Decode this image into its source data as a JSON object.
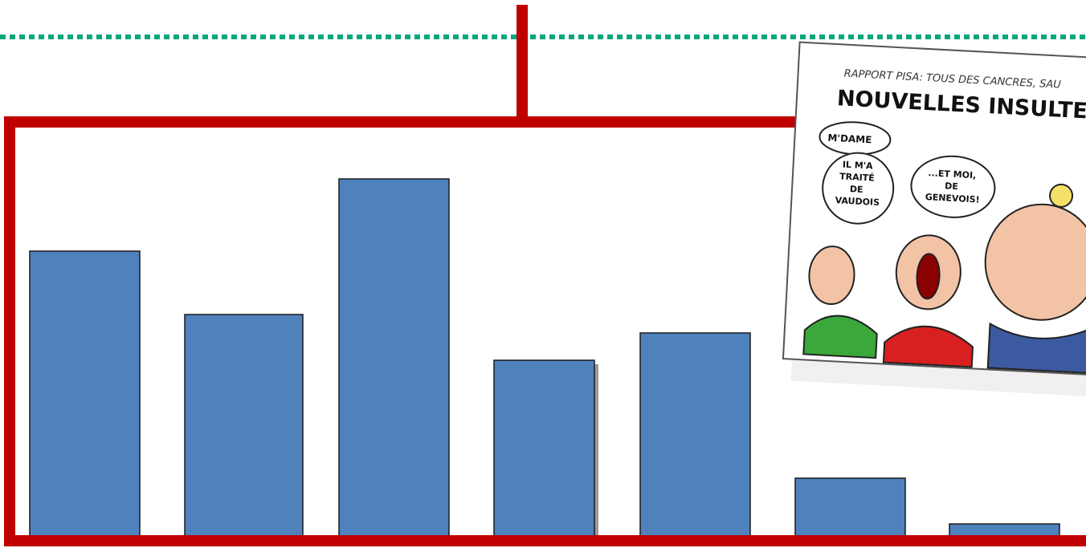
{
  "chart_data": {
    "type": "bar",
    "values": [
      355,
      276,
      445,
      219,
      253,
      72,
      15
    ],
    "ylim": [
      0,
      460
    ],
    "grid": false,
    "legend": "none",
    "colors": {
      "bar": "#4f81bd",
      "bar_edge": "#1a1a1a",
      "frame": "#c00000",
      "dotted_line": "#0aa77f"
    }
  },
  "cartoon": {
    "header_small": "RAPPORT PISA: TOUS DES CANCRES, SAU",
    "header_big": "NOUVELLES INSULTES SOUS",
    "bubble_1": "M'DAME",
    "bubble_2": [
      "IL M'A",
      "TRAITÉ",
      "DE",
      "VAUDOIS"
    ],
    "bubble_3": [
      "...ET MOI,",
      "DE",
      "GENEVOIS!"
    ]
  }
}
